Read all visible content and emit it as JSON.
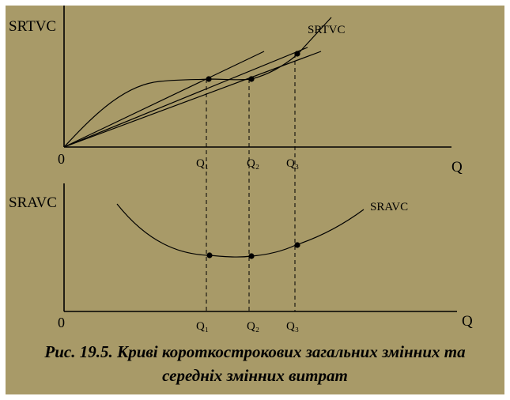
{
  "top_panel": {
    "y_axis_label": "SRTVC",
    "x_axis_label": "Q",
    "origin_label": "0",
    "curve_label": "SRTVC",
    "ticks": [
      "Q₁",
      "Q₂",
      "Q₃"
    ]
  },
  "bottom_panel": {
    "y_axis_label": "SRAVC",
    "x_axis_label": "Q",
    "origin_label": "0",
    "curve_label": "SRAVC",
    "ticks": [
      "Q₁",
      "Q₂",
      "Q₃"
    ]
  },
  "caption": {
    "line1": "Рис. 19.5. Криві короткострокових загальних змінних та",
    "line2": "середніх змінних витрат"
  },
  "colors": {
    "background": "#a89a68",
    "ink": "#000000"
  }
}
